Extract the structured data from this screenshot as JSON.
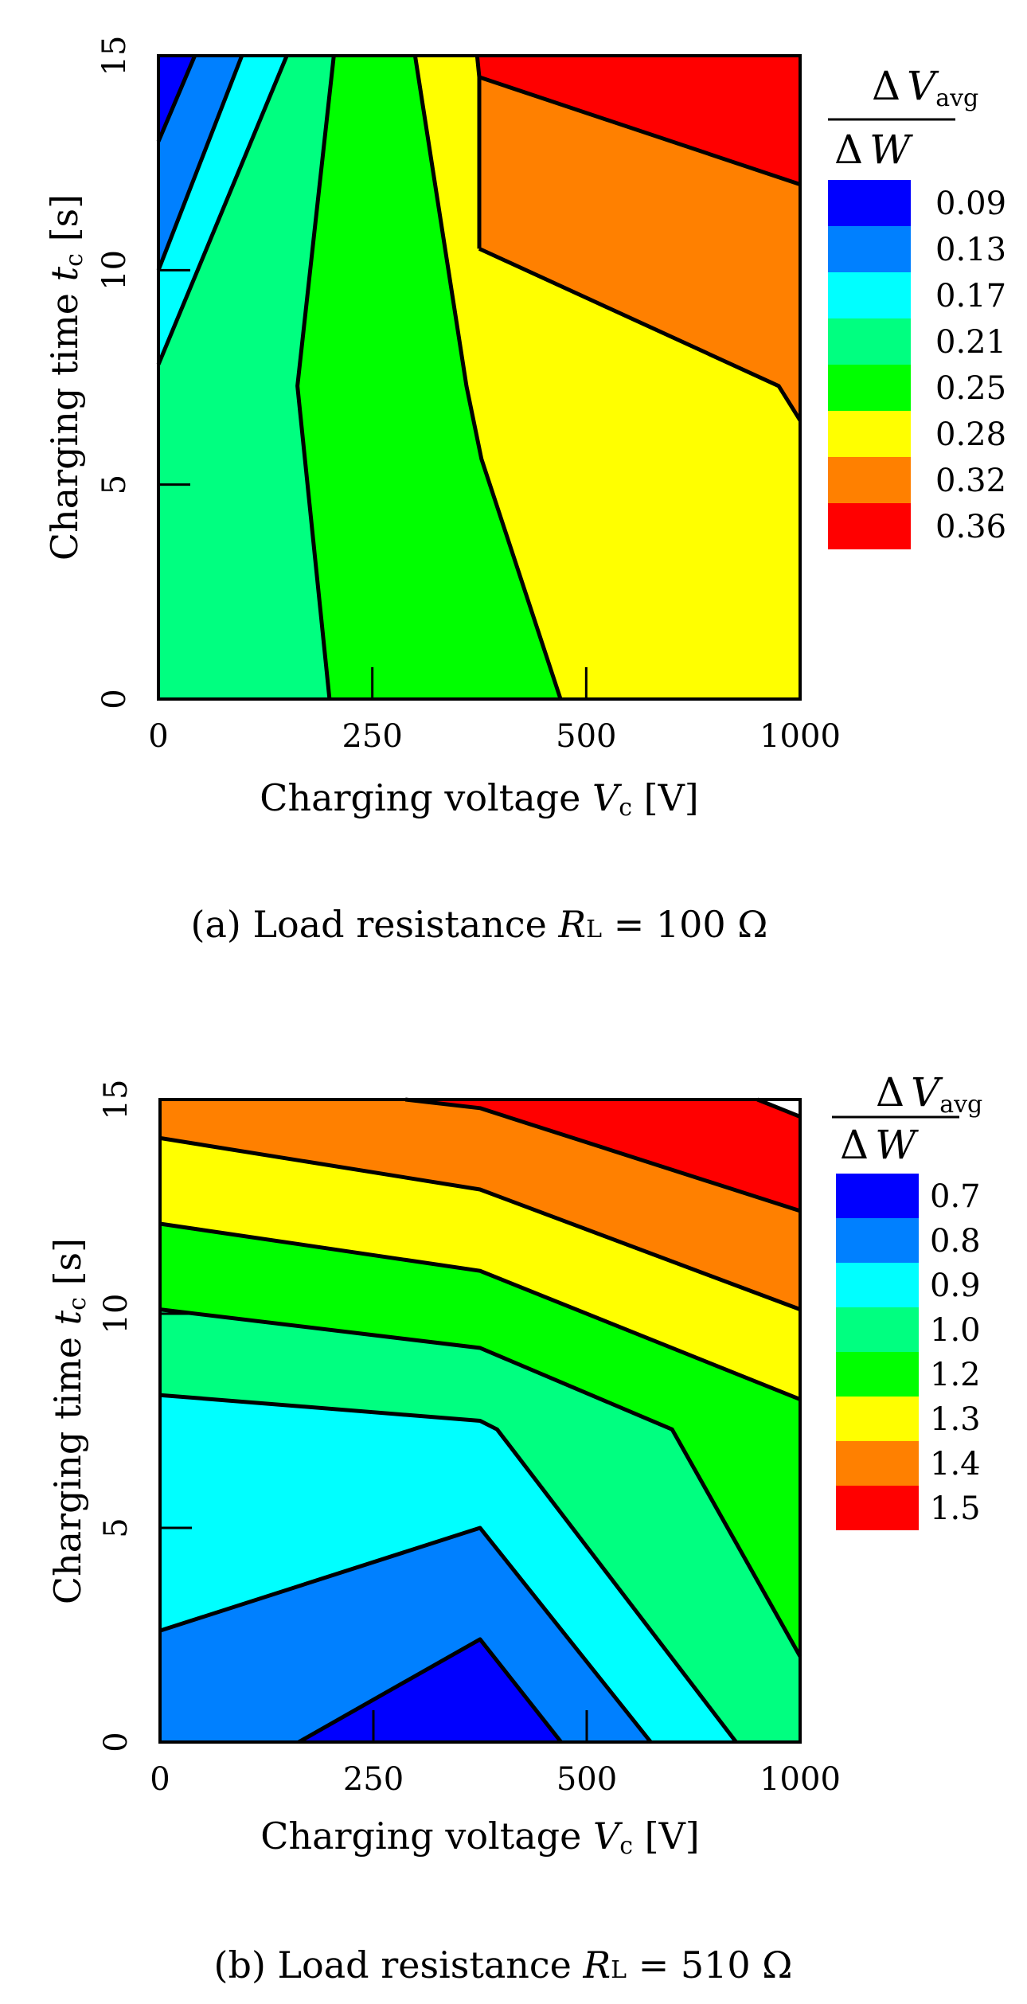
{
  "chart_data": [
    {
      "type": "heatmap",
      "subtype": "filled-contour",
      "panel": "a",
      "caption": {
        "prefix": "(a) Load resistance ",
        "var": "R",
        "sub": "L",
        "suffix": " = 100  Ω"
      },
      "xlabel": {
        "text": "Charging voltage  ",
        "var": "V",
        "sub": "c",
        "unit": "  [V]"
      },
      "ylabel": {
        "text": "Charging time  ",
        "var": "t",
        "sub": "c",
        "unit": "  [s]"
      },
      "x_ticks": [
        "0",
        "250",
        "500",
        "1000"
      ],
      "x_tick_positions": [
        0,
        1,
        2,
        3
      ],
      "xlim": [
        0,
        3
      ],
      "y_ticks": [
        "0",
        "5",
        "10",
        "15"
      ],
      "y_tick_values": [
        0,
        5,
        10,
        15
      ],
      "ylim": [
        0,
        15
      ],
      "colorbar_title": {
        "num_symbol": "Δ",
        "num_var": "V",
        "num_sub": "avg",
        "den_symbol": "Δ",
        "den_var": "W"
      },
      "levels": [
        "0.09",
        "0.13",
        "0.17",
        "0.21",
        "0.25",
        "0.28",
        "0.32",
        "0.36"
      ],
      "colors": [
        "#0000FF",
        "#0080FF",
        "#00FFFF",
        "#00FF80",
        "#00FF00",
        "#FFFF00",
        "#FF8000",
        "#FF0000"
      ],
      "contour_lines": [
        [
          [
            0,
            13.0
          ],
          [
            0.17,
            15
          ]
        ],
        [
          [
            0,
            10.0
          ],
          [
            0.39,
            15
          ]
        ],
        [
          [
            0,
            7.8
          ],
          [
            0.6,
            15
          ]
        ],
        [
          [
            0.8,
            0
          ],
          [
            0.65,
            7.3
          ],
          [
            0.82,
            15
          ]
        ],
        [
          [
            1.88,
            0
          ],
          [
            1.51,
            5.6
          ],
          [
            1.44,
            7.3
          ],
          [
            1.2,
            15
          ]
        ],
        [
          [
            1.5,
            10.5
          ],
          [
            1.5,
            14.5
          ],
          [
            1.49,
            15
          ]
        ],
        [
          [
            1.5,
            10.5
          ],
          [
            2.9,
            7.3
          ],
          [
            3.0,
            6.5
          ]
        ],
        [
          [
            1.5,
            14.5
          ],
          [
            3.0,
            12.0
          ]
        ]
      ],
      "regions": [
        {
          "level": 0,
          "points": [
            [
              0,
              15
            ],
            [
              0,
              13.0
            ],
            [
              0.17,
              15
            ]
          ]
        },
        {
          "level": 1,
          "points": [
            [
              0,
              13.0
            ],
            [
              0,
              10.0
            ],
            [
              0.39,
              15
            ],
            [
              0.17,
              15
            ]
          ]
        },
        {
          "level": 2,
          "points": [
            [
              0,
              10.0
            ],
            [
              0,
              7.8
            ],
            [
              0.6,
              15
            ],
            [
              0.39,
              15
            ]
          ]
        },
        {
          "level": 3,
          "points": [
            [
              0,
              7.8
            ],
            [
              0,
              0
            ],
            [
              0.8,
              0
            ],
            [
              0.65,
              7.3
            ],
            [
              0.82,
              15
            ],
            [
              0.6,
              15
            ]
          ]
        },
        {
          "level": 4,
          "points": [
            [
              0.8,
              0
            ],
            [
              1.88,
              0
            ],
            [
              1.51,
              5.6
            ],
            [
              1.44,
              7.3
            ],
            [
              1.2,
              15
            ],
            [
              0.82,
              15
            ],
            [
              0.65,
              7.3
            ]
          ]
        },
        {
          "level": 5,
          "points": [
            [
              1.88,
              0
            ],
            [
              3,
              0
            ],
            [
              3,
              6.5
            ],
            [
              2.9,
              7.3
            ],
            [
              1.5,
              10.5
            ],
            [
              1.5,
              14.5
            ],
            [
              1.49,
              15
            ],
            [
              1.2,
              15
            ],
            [
              1.44,
              7.3
            ],
            [
              1.51,
              5.6
            ]
          ]
        },
        {
          "level": 6,
          "points": [
            [
              1.5,
              10.5
            ],
            [
              2.9,
              7.3
            ],
            [
              3,
              6.5
            ],
            [
              3,
              12.0
            ],
            [
              1.5,
              14.5
            ]
          ]
        },
        {
          "level": 7,
          "points": [
            [
              1.5,
              14.5
            ],
            [
              3,
              12.0
            ],
            [
              3,
              15
            ],
            [
              1.49,
              15
            ]
          ]
        }
      ]
    },
    {
      "type": "heatmap",
      "subtype": "filled-contour",
      "panel": "b",
      "caption": {
        "prefix": "(b) Load resistance ",
        "var": "R",
        "sub": "L",
        "suffix": " = 510  Ω"
      },
      "xlabel": {
        "text": "Charging voltage  ",
        "var": "V",
        "sub": "c",
        "unit": "  [V]"
      },
      "ylabel": {
        "text": "Charging time  ",
        "var": "t",
        "sub": "c",
        "unit": "  [s]"
      },
      "x_ticks": [
        "0",
        "250",
        "500",
        "1000"
      ],
      "x_tick_positions": [
        0,
        1,
        2,
        3
      ],
      "xlim": [
        0,
        3
      ],
      "y_ticks": [
        "0",
        "5",
        "10",
        "15"
      ],
      "y_tick_values": [
        0,
        5,
        10,
        15
      ],
      "ylim": [
        0,
        15
      ],
      "colorbar_title": {
        "num_symbol": "Δ",
        "num_var": "V",
        "num_sub": "avg",
        "den_symbol": "Δ",
        "den_var": "W"
      },
      "levels": [
        "0.7",
        "0.8",
        "0.9",
        "1.0",
        "1.2",
        "1.3",
        "1.4",
        "1.5"
      ],
      "colors": [
        "#0000FF",
        "#0080FF",
        "#00FFFF",
        "#00FF80",
        "#00FF00",
        "#FFFF00",
        "#FF8000",
        "#FF0000"
      ],
      "contour_lines": [
        [
          [
            0.65,
            0
          ],
          [
            1.5,
            2.4
          ],
          [
            1.88,
            0
          ]
        ],
        [
          [
            0,
            2.6
          ],
          [
            1.5,
            5.0
          ],
          [
            2.3,
            0
          ]
        ],
        [
          [
            0,
            8.1
          ],
          [
            1.5,
            7.5
          ],
          [
            1.58,
            7.3
          ],
          [
            2.7,
            0
          ]
        ],
        [
          [
            0,
            10.1
          ],
          [
            1.5,
            9.2
          ],
          [
            2.4,
            7.3
          ],
          [
            3.0,
            2.0
          ]
        ],
        [
          [
            0,
            12.1
          ],
          [
            1.5,
            11.0
          ],
          [
            3.0,
            8.0
          ]
        ],
        [
          [
            0,
            14.1
          ],
          [
            1.5,
            12.9
          ],
          [
            3.0,
            10.1
          ]
        ],
        [
          [
            1.15,
            15
          ],
          [
            1.5,
            14.8
          ],
          [
            3.0,
            12.4
          ]
        ],
        [
          [
            2.8,
            15
          ],
          [
            3.0,
            14.6
          ]
        ]
      ],
      "regions": [
        {
          "level": 0,
          "points": [
            [
              0.65,
              0
            ],
            [
              1.5,
              2.4
            ],
            [
              1.88,
              0
            ]
          ]
        },
        {
          "level": 1,
          "points": [
            [
              0,
              0
            ],
            [
              0.65,
              0
            ],
            [
              1.5,
              2.4
            ],
            [
              1.88,
              0
            ],
            [
              2.3,
              0
            ],
            [
              1.5,
              5.0
            ],
            [
              0,
              2.6
            ]
          ]
        },
        {
          "level": 2,
          "points": [
            [
              0,
              2.6
            ],
            [
              1.5,
              5.0
            ],
            [
              2.3,
              0
            ],
            [
              2.7,
              0
            ],
            [
              1.58,
              7.3
            ],
            [
              1.5,
              7.5
            ],
            [
              0,
              8.1
            ]
          ]
        },
        {
          "level": 3,
          "points": [
            [
              0,
              8.1
            ],
            [
              1.5,
              7.5
            ],
            [
              1.58,
              7.3
            ],
            [
              2.7,
              0
            ],
            [
              3,
              0
            ],
            [
              3,
              2.0
            ],
            [
              2.4,
              7.3
            ],
            [
              1.5,
              9.2
            ],
            [
              0,
              10.1
            ]
          ]
        },
        {
          "level": 4,
          "points": [
            [
              0,
              10.1
            ],
            [
              1.5,
              9.2
            ],
            [
              2.4,
              7.3
            ],
            [
              3,
              2.0
            ],
            [
              3,
              8.0
            ],
            [
              1.5,
              11.0
            ],
            [
              0,
              12.1
            ]
          ]
        },
        {
          "level": 5,
          "points": [
            [
              0,
              12.1
            ],
            [
              1.5,
              11.0
            ],
            [
              3,
              8.0
            ],
            [
              3,
              10.1
            ],
            [
              1.5,
              12.9
            ],
            [
              0,
              14.1
            ]
          ]
        },
        {
          "level": 6,
          "points": [
            [
              0,
              14.1
            ],
            [
              1.5,
              12.9
            ],
            [
              3,
              10.1
            ],
            [
              3,
              12.4
            ],
            [
              1.5,
              14.8
            ],
            [
              1.15,
              15
            ],
            [
              0,
              15
            ]
          ]
        },
        {
          "level": 7,
          "points": [
            [
              1.15,
              15
            ],
            [
              1.5,
              14.8
            ],
            [
              3,
              12.4
            ],
            [
              3,
              14.6
            ],
            [
              2.8,
              15
            ]
          ]
        }
      ]
    }
  ]
}
